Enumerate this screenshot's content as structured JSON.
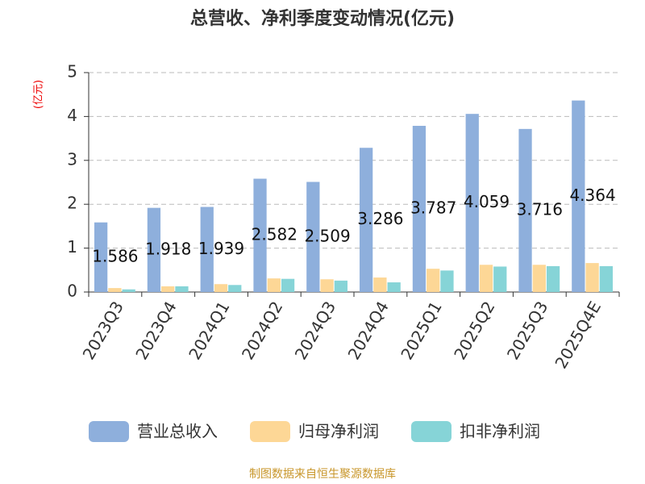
{
  "chart_data": {
    "type": "bar",
    "title": "总营收、净利季度变动情况(亿元)",
    "y_unit": "(亿元)",
    "source": "制图数据来自恒生聚源数据库",
    "categories": [
      "2023Q3",
      "2023Q4",
      "2024Q1",
      "2024Q2",
      "2024Q3",
      "2024Q4",
      "2025Q1",
      "2025Q2",
      "2025Q3",
      "2025Q4E"
    ],
    "series": [
      {
        "name": "营业总收入",
        "color": "#8eafdc",
        "values": [
          1.586,
          1.918,
          1.939,
          2.582,
          2.509,
          3.286,
          3.787,
          4.059,
          3.716,
          4.364
        ],
        "show_labels": true
      },
      {
        "name": "归母净利润",
        "color": "#fdd796",
        "values": [
          0.09,
          0.13,
          0.18,
          0.31,
          0.29,
          0.33,
          0.53,
          0.62,
          0.62,
          0.66
        ]
      },
      {
        "name": "扣非净利润",
        "color": "#86d4d7",
        "values": [
          0.06,
          0.13,
          0.16,
          0.3,
          0.26,
          0.22,
          0.49,
          0.58,
          0.59,
          0.59
        ]
      }
    ],
    "ylim": [
      0,
      5
    ],
    "yticks": [
      0,
      1,
      2,
      3,
      4,
      5
    ],
    "grid": true
  }
}
